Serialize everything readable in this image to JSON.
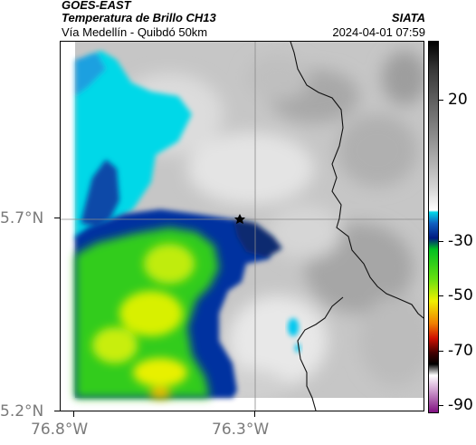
{
  "header": {
    "satellite": "GOES-EAST",
    "product": "Temperatura de Brillo CH13",
    "route": "Vía Medellín - Quibdó 50km",
    "org": "SIATA",
    "datetime": "2024-04-01 07:59"
  },
  "axes": {
    "y_ticks": [
      "5.7°N",
      "5.2°N"
    ],
    "x_ticks": [
      "76.8°W",
      "76.3°W"
    ]
  },
  "colorbar": {
    "ticks": [
      "20",
      "-30",
      "-50",
      "-70",
      "-90"
    ],
    "range_c": [
      -95,
      42
    ]
  },
  "colors": {
    "cloud_cold_blue": "#0033a0",
    "cloud_cyan": "#00d8e8",
    "cloud_green": "#33cc1a",
    "cloud_yellow": "#e8f000",
    "background_gray": "#c8c8c8"
  }
}
